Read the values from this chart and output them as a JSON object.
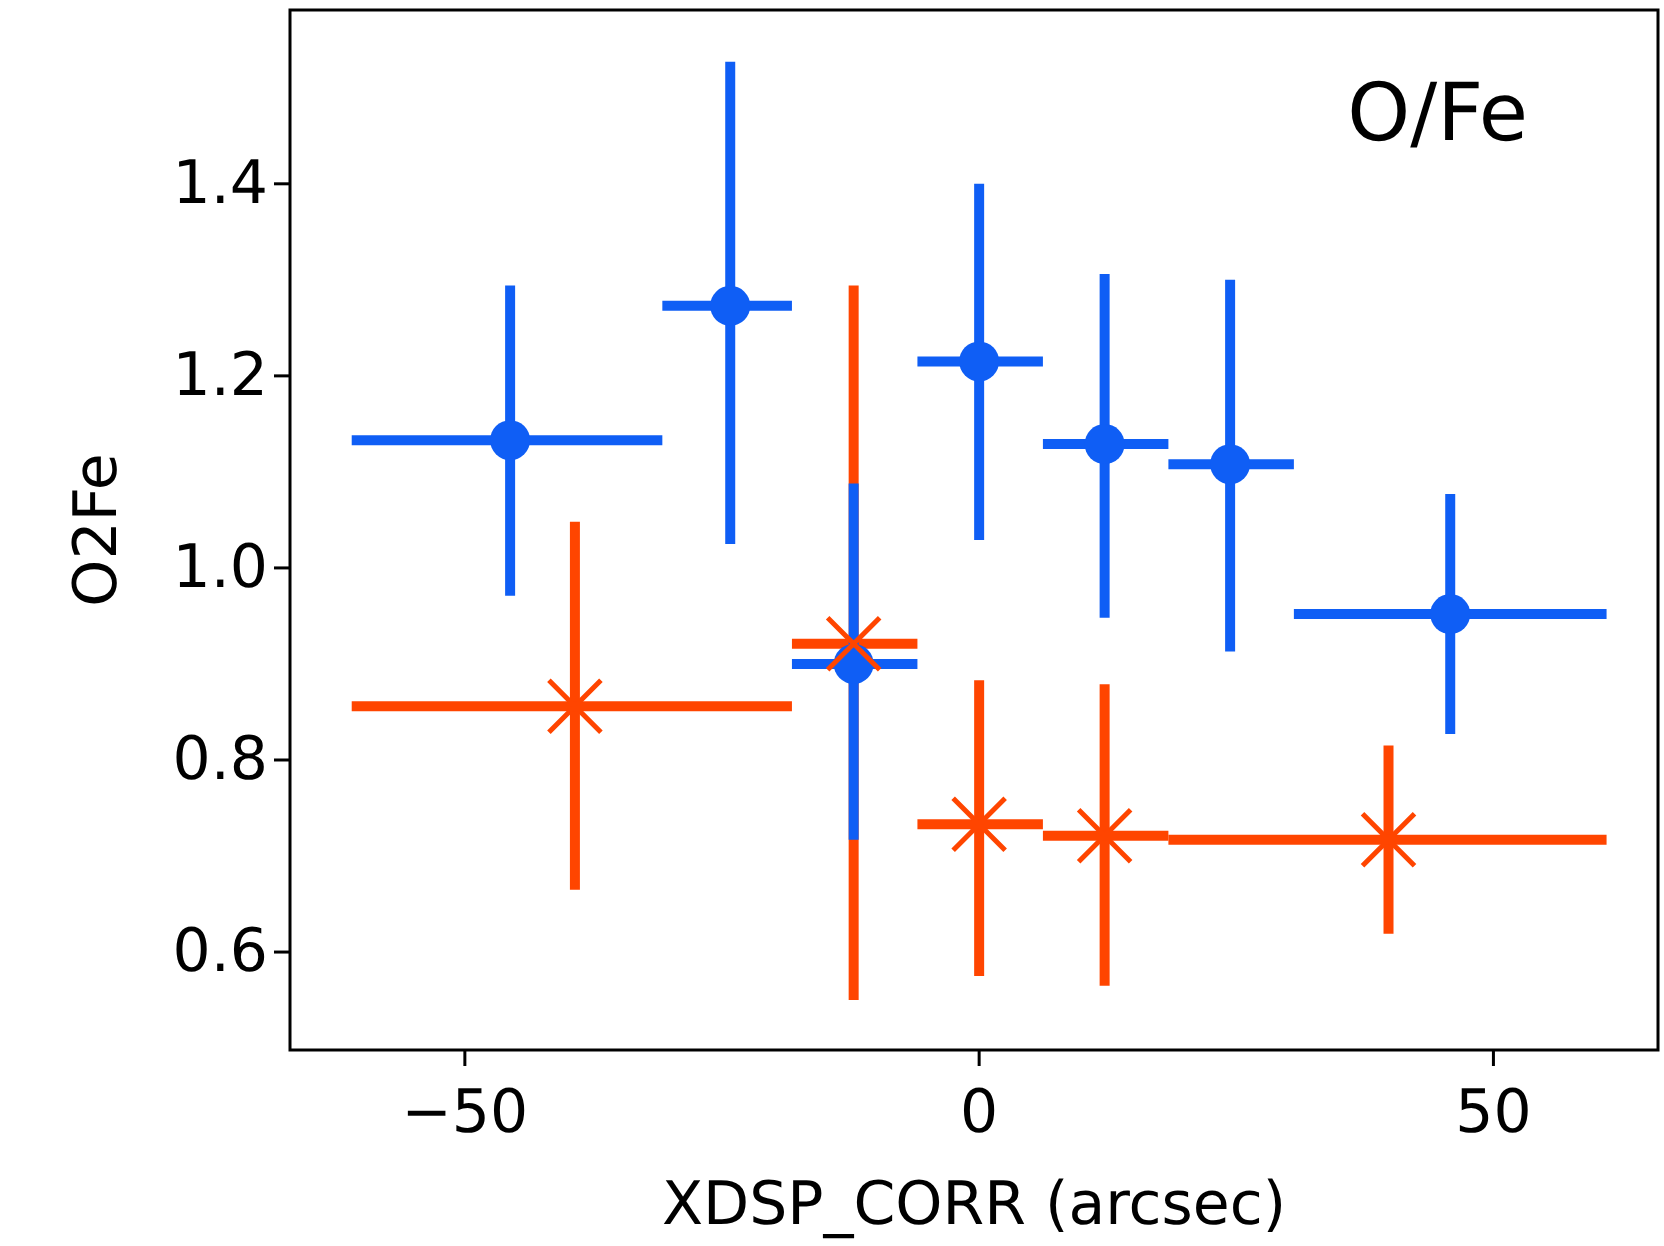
{
  "chart_data": {
    "type": "scatter",
    "xlabel": "XDSP_CORR (arcsec)",
    "ylabel": "O2Fe",
    "annotations": [
      "O/Fe"
    ],
    "xlim": [
      -67,
      66
    ],
    "ylim": [
      0.498,
      1.581
    ],
    "xticks": [
      {
        "value": -50,
        "label": "−50"
      },
      0,
      50
    ],
    "yticks": [
      0.6,
      0.8,
      {
        "value": 1,
        "label": "1.0"
      },
      1.2,
      1.4
    ],
    "grid": false,
    "series": [
      {
        "color": "#0f5ef5",
        "marker": "circle",
        "x": [
          -45.6,
          -24.2,
          -12.2,
          0,
          12.2,
          24.4,
          45.8
        ],
        "values": [
          1.133,
          1.273,
          0.9,
          1.215,
          1.129,
          1.108,
          0.952
        ],
        "errors": [
          [
            0.971,
            1.294
          ],
          [
            1.025,
            1.527
          ],
          [
            0.717,
            1.088
          ],
          [
            1.029,
            1.4
          ],
          [
            0.948,
            1.306
          ],
          [
            0.913,
            1.3
          ],
          [
            0.827,
            1.077
          ]
        ],
        "xerrors": [
          [
            -61,
            -30.8
          ],
          [
            -30.8,
            -18.2
          ],
          [
            -18.2,
            -6
          ],
          [
            -6,
            6.2
          ],
          [
            6.2,
            18.4
          ],
          [
            18.4,
            30.6
          ],
          [
            30.6,
            61
          ]
        ]
      },
      {
        "color": "#ff4500",
        "marker": "cross",
        "x": [
          -39.3,
          -12.2,
          0,
          12.2,
          39.8
        ],
        "values": [
          0.856,
          0.921,
          0.733,
          0.721,
          0.717
        ],
        "errors": [
          [
            0.665,
            1.048
          ],
          [
            0.55,
            1.294
          ],
          [
            0.575,
            0.883
          ],
          [
            0.565,
            0.879
          ],
          [
            0.619,
            0.815
          ]
        ],
        "xerrors": [
          [
            -61,
            -18.2
          ],
          [
            -18.2,
            -6
          ],
          [
            -6,
            6.2
          ],
          [
            6.2,
            18.4
          ],
          [
            18.4,
            61
          ]
        ]
      }
    ]
  }
}
